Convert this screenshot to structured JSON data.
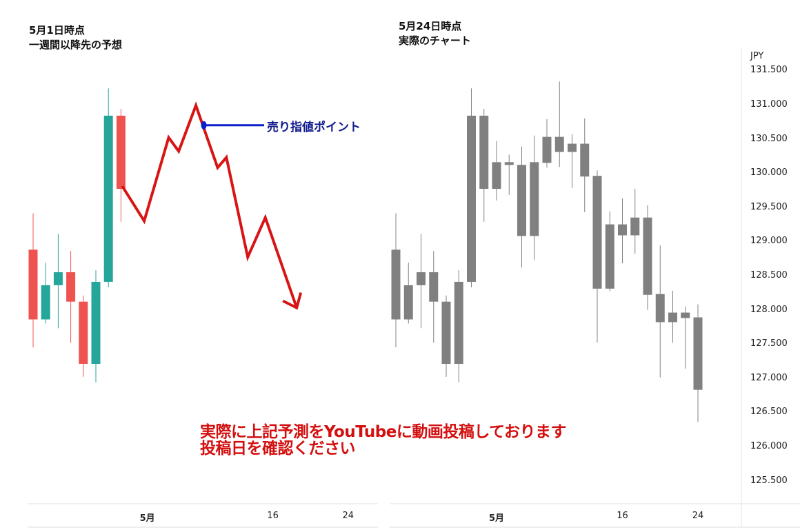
{
  "titles": {
    "left_line1": "5月1日時点",
    "left_line2": "一週間以降先の予想",
    "right_line1": "5月24日時点",
    "right_line2": "実際のチャート"
  },
  "annotation": {
    "line1": "実際に上記予測をYouTubeに動画投稿しております",
    "line2": "投稿日を確認ください"
  },
  "colors": {
    "bull": "#26a69a",
    "bear": "#ef5350",
    "actual": "#808080",
    "prediction": "#d81414",
    "sell_marker": "#0a1fc8",
    "annotation": "#d40f0f"
  },
  "chart_data": [
    {
      "type": "candlestick",
      "title": "5月1日時点 一週間以降先の予想",
      "candles_index": [
        1,
        2,
        3,
        4,
        5,
        6,
        7,
        8
      ],
      "ohlc": [
        [
          128.89,
          129.42,
          127.46,
          127.87
        ],
        [
          127.87,
          128.7,
          127.81,
          128.37
        ],
        [
          128.37,
          129.12,
          127.74,
          128.56
        ],
        [
          128.56,
          128.87,
          127.53,
          128.13
        ],
        [
          128.13,
          128.22,
          127.03,
          127.22
        ],
        [
          127.22,
          128.59,
          126.95,
          128.42
        ],
        [
          128.42,
          131.25,
          128.34,
          130.85
        ],
        [
          130.85,
          130.95,
          129.3,
          129.78
        ]
      ],
      "prediction_line": {
        "x": [
          8.1,
          9.85,
          11.8,
          12.6,
          13.97,
          15.7,
          16.4,
          18.1,
          19.5,
          22.0
        ],
        "y": [
          129.82,
          129.31,
          130.53,
          130.33,
          131.0,
          130.09,
          130.24,
          128.78,
          129.36,
          128.04
        ]
      },
      "sell_point": {
        "label": "売り指値ポイント",
        "x": 14.6,
        "price": 130.71
      },
      "x_ticks": [
        {
          "index": 9,
          "label": "5月",
          "bold": true
        },
        {
          "index": 19,
          "label": "16"
        },
        {
          "index": 25,
          "label": "24"
        }
      ]
    },
    {
      "type": "candlestick",
      "title": "5月24日時点 実際のチャート",
      "ylabel": "JPY",
      "ylim": [
        125.3,
        131.6
      ],
      "y_ticks": [
        "131.500",
        "131.000",
        "130.500",
        "130.000",
        "129.500",
        "129.000",
        "128.500",
        "128.000",
        "127.500",
        "127.000",
        "126.500",
        "126.000",
        "125.500"
      ],
      "ohlc": [
        [
          128.89,
          129.42,
          127.46,
          127.87
        ],
        [
          127.87,
          128.7,
          127.81,
          128.37
        ],
        [
          128.37,
          129.12,
          127.74,
          128.56
        ],
        [
          128.56,
          128.87,
          127.53,
          128.13
        ],
        [
          128.13,
          128.22,
          127.03,
          127.22
        ],
        [
          127.22,
          128.59,
          126.95,
          128.42
        ],
        [
          128.42,
          131.25,
          128.34,
          130.85
        ],
        [
          130.85,
          130.95,
          129.3,
          129.78
        ],
        [
          129.78,
          130.48,
          129.61,
          130.17
        ],
        [
          130.17,
          130.28,
          129.69,
          130.13
        ],
        [
          130.13,
          130.4,
          128.63,
          129.09
        ],
        [
          129.09,
          130.56,
          128.74,
          130.17
        ],
        [
          130.16,
          130.8,
          130.09,
          130.54
        ],
        [
          130.54,
          131.35,
          130.1,
          130.32
        ],
        [
          130.32,
          130.58,
          129.79,
          130.44
        ],
        [
          130.44,
          130.81,
          129.44,
          129.96
        ],
        [
          129.97,
          130.05,
          127.53,
          128.32
        ],
        [
          128.32,
          129.45,
          128.28,
          129.26
        ],
        [
          129.26,
          129.64,
          128.69,
          129.1
        ],
        [
          129.1,
          129.78,
          128.83,
          129.36
        ],
        [
          129.36,
          129.54,
          128.01,
          128.23
        ],
        [
          128.24,
          128.95,
          127.02,
          127.83
        ],
        [
          127.97,
          128.29,
          127.53,
          127.83
        ],
        [
          127.89,
          128.06,
          127.15,
          127.97
        ],
        [
          127.9,
          128.09,
          126.37,
          126.84
        ]
      ],
      "x_ticks": [
        {
          "index": 9,
          "label": "5月",
          "bold": true
        },
        {
          "index": 19,
          "label": "16"
        },
        {
          "index": 25,
          "label": "24"
        }
      ]
    }
  ]
}
